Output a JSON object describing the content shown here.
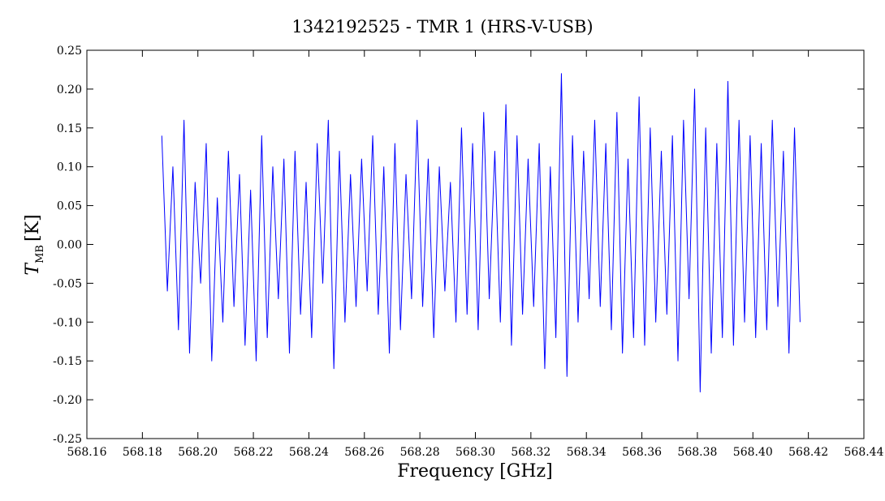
{
  "chart_data": {
    "type": "line",
    "title": "1342192525 - TMR 1 (HRS-V-USB)",
    "xlabel": "Frequency [GHz]",
    "ylabel_main": "T",
    "ylabel_sub": "MB",
    "ylabel_unit": "[K]",
    "xlim": [
      568.16,
      568.44
    ],
    "ylim": [
      -0.25,
      0.25
    ],
    "x_ticks": [
      568.16,
      568.18,
      568.2,
      568.22,
      568.24,
      568.26,
      568.28,
      568.3,
      568.32,
      568.34,
      568.36,
      568.38,
      568.4,
      568.42,
      568.44
    ],
    "x_tick_labels": [
      "568.16",
      "568.18",
      "568.20",
      "568.22",
      "568.24",
      "568.26",
      "568.28",
      "568.30",
      "568.32",
      "568.34",
      "568.36",
      "568.38",
      "568.40",
      "568.42",
      "568.44"
    ],
    "y_ticks": [
      -0.25,
      -0.2,
      -0.15,
      -0.1,
      -0.05,
      0.0,
      0.05,
      0.1,
      0.15,
      0.2,
      0.25
    ],
    "y_tick_labels": [
      "-0.25",
      "-0.20",
      "-0.15",
      "-0.10",
      "-0.05",
      "0.00",
      "0.05",
      "0.10",
      "0.15",
      "0.20",
      "0.25"
    ],
    "grid": false,
    "series": [
      {
        "color": "#0000ff",
        "x": [
          568.187,
          568.189,
          568.191,
          568.193,
          568.195,
          568.197,
          568.199,
          568.201,
          568.203,
          568.205,
          568.207,
          568.209,
          568.211,
          568.213,
          568.215,
          568.217,
          568.219,
          568.221,
          568.223,
          568.225,
          568.227,
          568.229,
          568.231,
          568.233,
          568.235,
          568.237,
          568.239,
          568.241,
          568.243,
          568.245,
          568.247,
          568.249,
          568.251,
          568.253,
          568.255,
          568.257,
          568.259,
          568.261,
          568.263,
          568.265,
          568.267,
          568.269,
          568.271,
          568.273,
          568.275,
          568.277,
          568.279,
          568.281,
          568.283,
          568.285,
          568.287,
          568.289,
          568.291,
          568.293,
          568.295,
          568.297,
          568.299,
          568.301,
          568.303,
          568.305,
          568.307,
          568.309,
          568.311,
          568.313,
          568.315,
          568.317,
          568.319,
          568.321,
          568.323,
          568.325,
          568.327,
          568.329,
          568.331,
          568.333,
          568.335,
          568.337,
          568.339,
          568.341,
          568.343,
          568.345,
          568.347,
          568.349,
          568.351,
          568.353,
          568.355,
          568.357,
          568.359,
          568.361,
          568.363,
          568.365,
          568.367,
          568.369,
          568.371,
          568.373,
          568.375,
          568.377,
          568.379,
          568.381,
          568.383,
          568.385,
          568.387,
          568.389,
          568.391,
          568.393,
          568.395,
          568.397,
          568.399,
          568.401,
          568.403,
          568.405,
          568.407,
          568.409,
          568.411,
          568.413,
          568.415,
          568.417
        ],
        "y": [
          0.14,
          -0.06,
          0.1,
          -0.11,
          0.16,
          -0.14,
          0.08,
          -0.05,
          0.13,
          -0.15,
          0.06,
          -0.1,
          0.12,
          -0.08,
          0.09,
          -0.13,
          0.07,
          -0.15,
          0.14,
          -0.12,
          0.1,
          -0.07,
          0.11,
          -0.14,
          0.12,
          -0.09,
          0.08,
          -0.12,
          0.13,
          -0.05,
          0.16,
          -0.16,
          0.12,
          -0.1,
          0.09,
          -0.08,
          0.11,
          -0.06,
          0.14,
          -0.09,
          0.1,
          -0.14,
          0.13,
          -0.11,
          0.09,
          -0.07,
          0.16,
          -0.08,
          0.11,
          -0.12,
          0.1,
          -0.06,
          0.08,
          -0.1,
          0.15,
          -0.09,
          0.13,
          -0.11,
          0.17,
          -0.07,
          0.12,
          -0.1,
          0.18,
          -0.13,
          0.14,
          -0.09,
          0.11,
          -0.08,
          0.13,
          -0.16,
          0.1,
          -0.12,
          0.22,
          -0.17,
          0.14,
          -0.1,
          0.12,
          -0.07,
          0.16,
          -0.08,
          0.13,
          -0.11,
          0.17,
          -0.14,
          0.11,
          -0.12,
          0.19,
          -0.13,
          0.15,
          -0.1,
          0.12,
          -0.09,
          0.14,
          -0.15,
          0.16,
          -0.07,
          0.2,
          -0.19,
          0.15,
          -0.14,
          0.13,
          -0.12,
          0.21,
          -0.13,
          0.16,
          -0.1,
          0.14,
          -0.12,
          0.13,
          -0.11,
          0.16,
          -0.08,
          0.12,
          -0.14,
          0.15,
          -0.1
        ]
      }
    ]
  }
}
